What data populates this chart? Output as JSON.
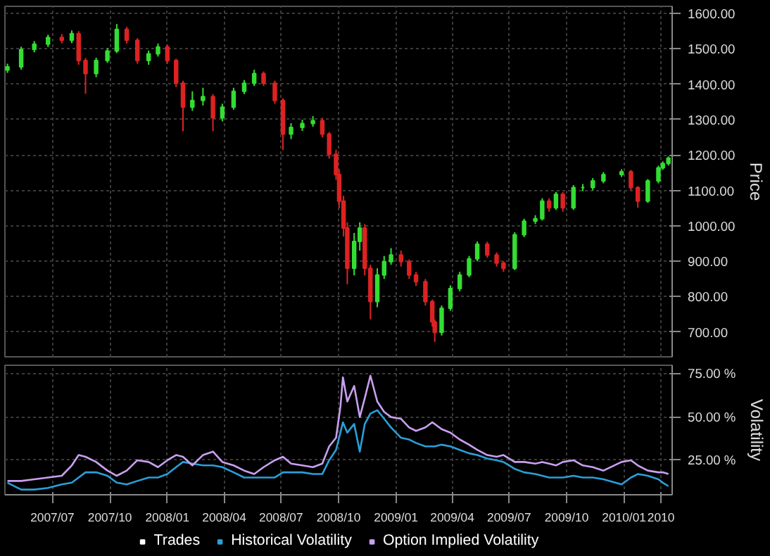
{
  "chart_data": [
    {
      "type": "candlestick",
      "ylabel": "Price",
      "tick_labels": "y",
      "grid": true,
      "xlim": [
        "2007-04-16",
        "2010-03-19"
      ],
      "xticks": [
        {
          "value": "2007-07-01",
          "label": null
        },
        {
          "value": "2007-10-01",
          "label": null
        },
        {
          "value": "2008-01-01",
          "label": null
        },
        {
          "value": "2008-04-01",
          "label": null
        },
        {
          "value": "2008-07-01",
          "label": null
        },
        {
          "value": "2008-10-01",
          "label": null
        },
        {
          "value": "2009-01-01",
          "label": null
        },
        {
          "value": "2009-04-01",
          "label": null
        },
        {
          "value": "2009-07-01",
          "label": null
        },
        {
          "value": "2009-10-01",
          "label": null
        },
        {
          "value": "2010-01-01",
          "label": null
        },
        {
          "value": "2010-03-01",
          "label": null
        }
      ],
      "ylim": [
        630,
        1620
      ],
      "yticks": [
        {
          "value": 700,
          "label": "700.00"
        },
        {
          "value": 800,
          "label": "800.00"
        },
        {
          "value": 900,
          "label": "900.00"
        },
        {
          "value": 1000,
          "label": "1000.00"
        },
        {
          "value": 1100,
          "label": "1100.00"
        },
        {
          "value": 1200,
          "label": "1200.00"
        },
        {
          "value": 1300,
          "label": "1300.00"
        },
        {
          "value": 1400,
          "label": "1400.00"
        },
        {
          "value": 1500,
          "label": "1500.00"
        },
        {
          "value": 1600,
          "label": "1600.00"
        }
      ],
      "x": [
        "2007-04-20",
        "2007-05-12",
        "2007-06-02",
        "2007-06-24",
        "2007-07-16",
        "2007-08-01",
        "2007-08-12",
        "2007-08-23",
        "2007-09-09",
        "2007-09-27",
        "2007-10-12",
        "2007-10-28",
        "2007-11-14",
        "2007-12-02",
        "2007-12-17",
        "2008-01-01",
        "2008-01-15",
        "2008-01-26",
        "2008-02-10",
        "2008-02-27",
        "2008-03-14",
        "2008-03-29",
        "2008-04-16",
        "2008-05-03",
        "2008-05-19",
        "2008-06-03",
        "2008-06-21",
        "2008-07-04",
        "2008-07-17",
        "2008-08-04",
        "2008-08-21",
        "2008-09-05",
        "2008-09-16",
        "2008-09-27",
        "2008-10-02",
        "2008-10-09",
        "2008-10-15",
        "2008-10-26",
        "2008-11-04",
        "2008-11-12",
        "2008-11-21",
        "2008-12-02",
        "2008-12-13",
        "2008-12-24",
        "2009-01-09",
        "2009-01-22",
        "2009-02-02",
        "2009-02-17",
        "2009-02-28",
        "2009-03-04",
        "2009-03-15",
        "2009-03-29",
        "2009-04-13",
        "2009-04-28",
        "2009-05-11",
        "2009-05-27",
        "2009-06-11",
        "2009-06-22",
        "2009-07-10",
        "2009-07-25",
        "2009-08-12",
        "2009-08-23",
        "2009-09-03",
        "2009-09-14",
        "2009-09-25",
        "2009-10-12",
        "2009-10-27",
        "2009-11-12",
        "2009-11-29",
        "2009-12-28",
        "2010-01-12",
        "2010-01-23",
        "2010-02-08",
        "2010-02-25",
        "2010-03-04",
        "2010-03-13"
      ],
      "series": [
        {
          "name": "Trades",
          "ohlc": [
            [
              1440,
              1458,
              1432,
              1449
            ],
            [
              1449,
              1506,
              1441,
              1498
            ],
            [
              1498,
              1522,
              1490,
              1513
            ],
            [
              1513,
              1540,
              1505,
              1532
            ],
            [
              1532,
              1542,
              1515,
              1524
            ],
            [
              1524,
              1552,
              1516,
              1543
            ],
            [
              1543,
              1550,
              1455,
              1467
            ],
            [
              1467,
              1474,
              1373,
              1430
            ],
            [
              1430,
              1475,
              1420,
              1467
            ],
            [
              1467,
              1502,
              1460,
              1494
            ],
            [
              1494,
              1570,
              1488,
              1555
            ],
            [
              1555,
              1562,
              1515,
              1524
            ],
            [
              1524,
              1530,
              1458,
              1467
            ],
            [
              1467,
              1495,
              1455,
              1486
            ],
            [
              1486,
              1515,
              1478,
              1505
            ],
            [
              1505,
              1512,
              1458,
              1467
            ],
            [
              1467,
              1472,
              1392,
              1403
            ],
            [
              1403,
              1410,
              1267,
              1335
            ],
            [
              1335,
              1380,
              1325,
              1354
            ],
            [
              1354,
              1390,
              1340,
              1365
            ],
            [
              1365,
              1372,
              1267,
              1305
            ],
            [
              1305,
              1345,
              1295,
              1335
            ],
            [
              1335,
              1390,
              1328,
              1380
            ],
            [
              1380,
              1412,
              1372,
              1403
            ],
            [
              1403,
              1441,
              1395,
              1430
            ],
            [
              1430,
              1436,
              1395,
              1403
            ],
            [
              1403,
              1410,
              1345,
              1354
            ],
            [
              1354,
              1360,
              1214,
              1259
            ],
            [
              1259,
              1290,
              1245,
              1278
            ],
            [
              1278,
              1300,
              1268,
              1289
            ],
            [
              1289,
              1310,
              1280,
              1297
            ],
            [
              1297,
              1305,
              1250,
              1259
            ],
            [
              1259,
              1265,
              1190,
              1202
            ],
            [
              1202,
              1215,
              1130,
              1145
            ],
            [
              1145,
              1160,
              1050,
              1070
            ],
            [
              1070,
              1085,
              970,
              994
            ],
            [
              994,
              1010,
              835,
              880
            ],
            [
              880,
              980,
              860,
              956
            ],
            [
              956,
              1010,
              930,
              994
            ],
            [
              994,
              1005,
              860,
              880
            ],
            [
              880,
              890,
              736,
              786
            ],
            [
              786,
              880,
              770,
              861
            ],
            [
              861,
              915,
              850,
              899
            ],
            [
              899,
              937,
              890,
              918
            ],
            [
              918,
              930,
              885,
              899
            ],
            [
              899,
              905,
              850,
              861
            ],
            [
              861,
              870,
              830,
              842
            ],
            [
              842,
              850,
              775,
              786
            ],
            [
              786,
              792,
              715,
              729
            ],
            [
              729,
              735,
              672,
              699
            ],
            [
              699,
              775,
              690,
              767
            ],
            [
              767,
              832,
              760,
              823
            ],
            [
              823,
              870,
              815,
              861
            ],
            [
              861,
              915,
              855,
              907
            ],
            [
              907,
              956,
              900,
              948
            ],
            [
              948,
              955,
              910,
              918
            ],
            [
              918,
              925,
              885,
              895
            ],
            [
              895,
              900,
              870,
              880
            ],
            [
              880,
              982,
              875,
              975
            ],
            [
              975,
              1020,
              968,
              1013
            ],
            [
              1013,
              1030,
              1005,
              1020
            ],
            [
              1020,
              1078,
              1015,
              1070
            ],
            [
              1070,
              1078,
              1040,
              1051
            ],
            [
              1051,
              1096,
              1045,
              1089
            ],
            [
              1089,
              1095,
              1040,
              1051
            ],
            [
              1051,
              1115,
              1045,
              1108
            ],
            [
              1108,
              1118,
              1098,
              1108
            ],
            [
              1108,
              1135,
              1100,
              1127
            ],
            [
              1127,
              1152,
              1120,
              1145
            ],
            [
              1145,
              1160,
              1138,
              1153
            ],
            [
              1153,
              1158,
              1100,
              1108
            ],
            [
              1108,
              1112,
              1051,
              1070
            ],
            [
              1070,
              1132,
              1065,
              1127
            ],
            [
              1127,
              1170,
              1120,
              1164
            ],
            [
              1164,
              1182,
              1158,
              1176
            ],
            [
              1176,
              1196,
              1170,
              1191
            ]
          ]
        }
      ]
    },
    {
      "type": "line",
      "ylabel": "Volatility",
      "grid": true,
      "legend": "bottom",
      "xlim": [
        "2007-04-16",
        "2010-03-19"
      ],
      "xticks": [
        {
          "value": "2007-07-01",
          "label": "2007/07"
        },
        {
          "value": "2007-10-01",
          "label": "2007/10"
        },
        {
          "value": "2008-01-01",
          "label": "2008/01"
        },
        {
          "value": "2008-04-01",
          "label": "2008/04"
        },
        {
          "value": "2008-07-01",
          "label": "2008/07"
        },
        {
          "value": "2008-10-01",
          "label": "2008/10"
        },
        {
          "value": "2009-01-01",
          "label": "2009/01"
        },
        {
          "value": "2009-04-01",
          "label": "2009/04"
        },
        {
          "value": "2009-07-01",
          "label": "2009/07"
        },
        {
          "value": "2009-10-01",
          "label": "2009/10"
        },
        {
          "value": "2010-01-01",
          "label": "2010/01"
        },
        {
          "value": "2010-03-01",
          "label": "2010"
        }
      ],
      "ylim": [
        5,
        80
      ],
      "yticks": [
        {
          "value": 25,
          "label": "25.00 %"
        },
        {
          "value": 50,
          "label": "50.00 %"
        },
        {
          "value": 75,
          "label": "75.00 %"
        }
      ],
      "x": [
        "2007-04-20",
        "2007-05-12",
        "2007-06-02",
        "2007-06-24",
        "2007-07-16",
        "2007-08-01",
        "2007-08-12",
        "2007-08-23",
        "2007-09-09",
        "2007-09-27",
        "2007-10-12",
        "2007-10-28",
        "2007-11-14",
        "2007-12-02",
        "2007-12-17",
        "2008-01-01",
        "2008-01-15",
        "2008-01-26",
        "2008-02-10",
        "2008-02-27",
        "2008-03-14",
        "2008-03-29",
        "2008-04-16",
        "2008-05-03",
        "2008-05-19",
        "2008-06-03",
        "2008-06-21",
        "2008-07-04",
        "2008-07-17",
        "2008-08-04",
        "2008-08-21",
        "2008-09-05",
        "2008-09-16",
        "2008-09-27",
        "2008-10-04",
        "2008-10-08",
        "2008-10-15",
        "2008-10-26",
        "2008-11-04",
        "2008-11-12",
        "2008-11-21",
        "2008-12-02",
        "2008-12-13",
        "2008-12-24",
        "2009-01-09",
        "2009-01-22",
        "2009-02-02",
        "2009-02-17",
        "2009-02-28",
        "2009-03-04",
        "2009-03-15",
        "2009-03-29",
        "2009-04-13",
        "2009-04-28",
        "2009-05-11",
        "2009-05-27",
        "2009-06-11",
        "2009-06-22",
        "2009-07-10",
        "2009-07-25",
        "2009-08-12",
        "2009-08-23",
        "2009-09-03",
        "2009-09-14",
        "2009-09-25",
        "2009-10-12",
        "2009-10-27",
        "2009-11-12",
        "2009-11-29",
        "2009-12-28",
        "2010-01-12",
        "2010-01-23",
        "2010-02-08",
        "2010-02-25",
        "2010-03-04",
        "2010-03-13"
      ],
      "series": [
        {
          "name": "Historical Volatility",
          "color": "#2a9fd8",
          "values": [
            12,
            8,
            8,
            9,
            11,
            12,
            15,
            18,
            18,
            16,
            12,
            11,
            13,
            15,
            15,
            17,
            21,
            24,
            23,
            22,
            22,
            21,
            18,
            15,
            15,
            15,
            15,
            18,
            18,
            18,
            17,
            17,
            25,
            31,
            41,
            47,
            41,
            46,
            30,
            46,
            52,
            54,
            49,
            44,
            38,
            37,
            35,
            33,
            33,
            33,
            34,
            33,
            31,
            29,
            28,
            26,
            25,
            24,
            20,
            18,
            17,
            16,
            15,
            15,
            15,
            16,
            15,
            15,
            14,
            11,
            15,
            17,
            16,
            14,
            12,
            10
          ]
        },
        {
          "name": "Option Implied Volatility",
          "color": "#c9a0f0",
          "values": [
            13,
            13,
            14,
            15,
            16,
            22,
            28,
            27,
            24,
            19,
            16,
            19,
            25,
            24,
            21,
            25,
            28,
            27,
            22,
            28,
            30,
            24,
            22,
            19,
            17,
            21,
            25,
            27,
            23,
            22,
            21,
            23,
            33,
            38,
            56,
            73,
            59,
            68,
            50,
            61,
            74,
            59,
            53,
            50,
            49,
            44,
            42,
            44,
            47,
            46,
            43,
            41,
            37,
            34,
            31,
            28,
            27,
            28,
            24,
            24,
            23,
            24,
            23,
            22,
            24,
            25,
            22,
            21,
            19,
            24,
            25,
            22,
            19,
            18,
            18,
            17
          ]
        }
      ]
    }
  ]
}
